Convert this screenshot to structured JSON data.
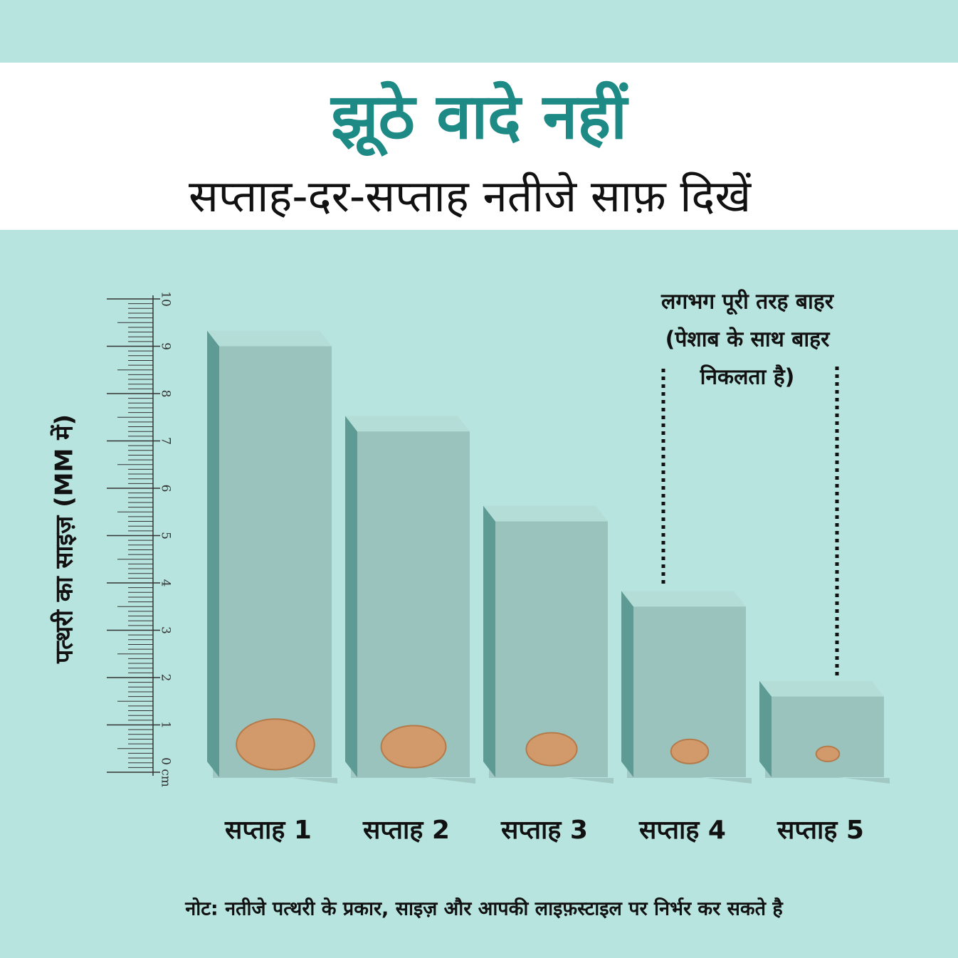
{
  "chart_data": {
    "type": "bar",
    "title": "झूठे वादे नहीं",
    "subtitle": "सप्ताह-दर-सप्ताह नतीजे साफ़ दिखें",
    "y_label": "पत्थरी का साइज़ (MM में)",
    "categories": [
      "सप्ताह 1",
      "सप्ताह 2",
      "सप्ताह 3",
      "सप्ताह 4",
      "सप्ताह 5"
    ],
    "values": [
      9,
      7.2,
      5.3,
      3.5,
      1.6
    ],
    "color": "#9ac3bd",
    "ylim": [
      0,
      10
    ],
    "yticks": [
      {
        "value": 0,
        "label": "0 cm"
      },
      1,
      2,
      3,
      4,
      5,
      6,
      7,
      8,
      9,
      10
    ],
    "annotation": [
      "लगभग पूरी तरह बाहर",
      "(पेशाब के साथ बाहर",
      "निकलता है)"
    ],
    "note": "नोट: नतीजे पत्थरी के प्रकार, साइज़ और आपकी लाइफ़स्टाइल पर निर्भर कर सकते है"
  }
}
